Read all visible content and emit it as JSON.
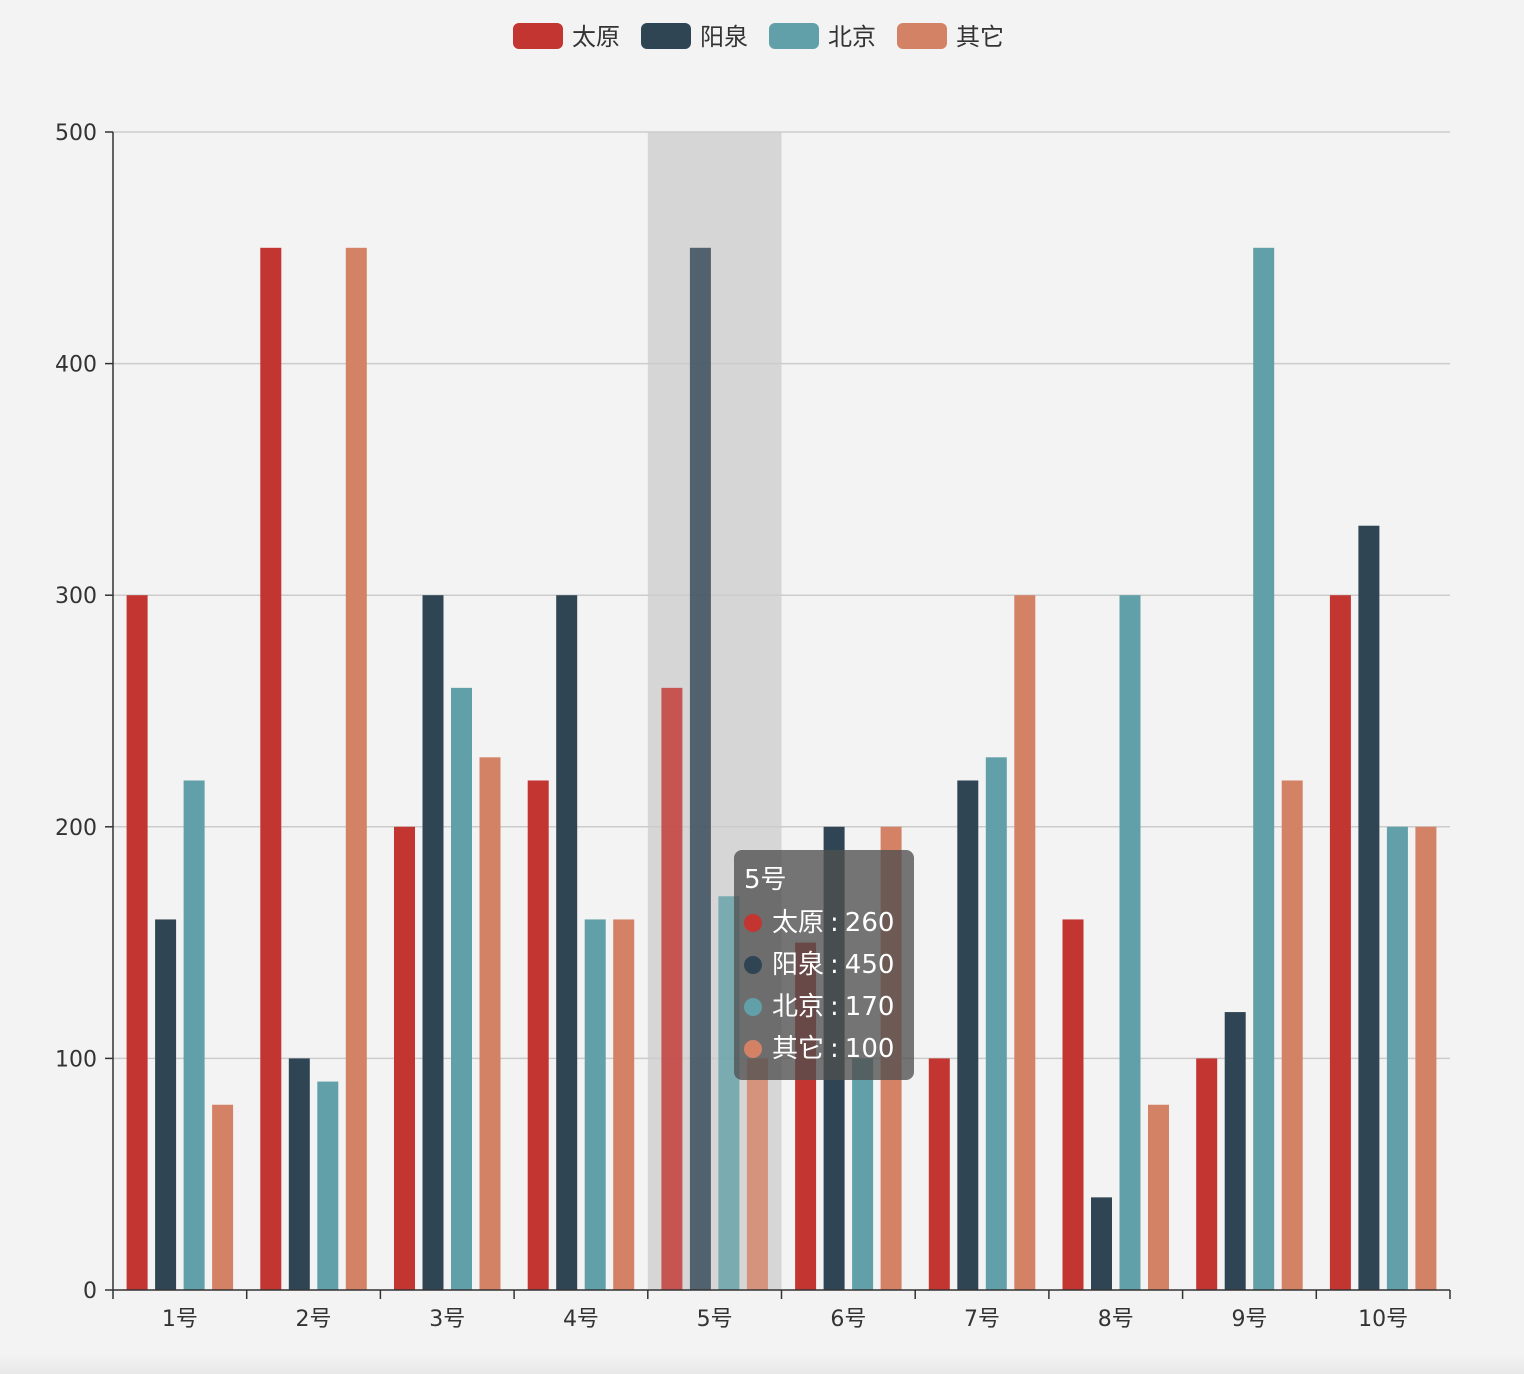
{
  "chart_data": {
    "type": "bar",
    "title": "",
    "xlabel": "",
    "ylabel": "",
    "categories": [
      "1号",
      "2号",
      "3号",
      "4号",
      "5号",
      "6号",
      "7号",
      "8号",
      "9号",
      "10号"
    ],
    "series": [
      {
        "name": "太原",
        "color": "#c23531",
        "values": [
          300,
          450,
          200,
          220,
          260,
          150,
          100,
          160,
          100,
          300
        ]
      },
      {
        "name": "阳泉",
        "color": "#2f4554",
        "values": [
          160,
          100,
          300,
          300,
          450,
          200,
          220,
          40,
          120,
          330
        ]
      },
      {
        "name": "北京",
        "color": "#61a0a8",
        "values": [
          220,
          90,
          260,
          160,
          170,
          100,
          230,
          300,
          450,
          200
        ]
      },
      {
        "name": "其它",
        "color": "#d48265",
        "values": [
          80,
          450,
          230,
          160,
          100,
          200,
          300,
          80,
          220,
          200
        ]
      }
    ],
    "ylim": [
      0,
      500
    ],
    "yticks": [
      0,
      100,
      200,
      300,
      400,
      500
    ],
    "grid": true,
    "legend_position": "top-center",
    "highlighted_category_index": 4
  },
  "tooltip": {
    "title": "5号",
    "separator": ":",
    "rows": [
      {
        "name": "太原",
        "value": "260",
        "color": "#c23531"
      },
      {
        "name": "阳泉",
        "value": "450",
        "color": "#2f4554"
      },
      {
        "name": "北京",
        "value": "170",
        "color": "#61a0a8"
      },
      {
        "name": "其它",
        "value": "100",
        "color": "#d48265"
      }
    ]
  }
}
